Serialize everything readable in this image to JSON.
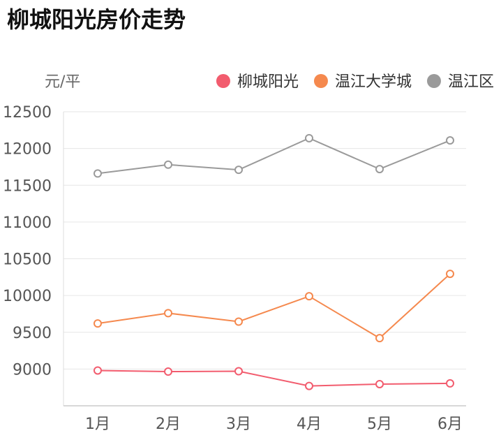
{
  "header": {
    "title": "柳城阳光房价走势"
  },
  "chart_data": {
    "type": "line",
    "title": "柳城阳光房价走势",
    "ylabel": "元/平",
    "xlabel": "",
    "categories": [
      "1月",
      "2月",
      "3月",
      "4月",
      "5月",
      "6月"
    ],
    "ylim": [
      8500,
      12500
    ],
    "yticks": [
      12500,
      12000,
      11500,
      11000,
      10500,
      10000,
      9500,
      9000
    ],
    "grid": true,
    "legend_position": "top-right",
    "series": [
      {
        "name": "柳城阳光",
        "color": "#f25c6e",
        "values": [
          8980,
          8965,
          8970,
          8770,
          8795,
          8805
        ]
      },
      {
        "name": "温江大学城",
        "color": "#f5894e",
        "values": [
          9620,
          9760,
          9645,
          9990,
          9420,
          10295
        ]
      },
      {
        "name": "温江区",
        "color": "#9a9a9a",
        "values": [
          11660,
          11780,
          11710,
          12140,
          11720,
          12110
        ]
      }
    ]
  }
}
